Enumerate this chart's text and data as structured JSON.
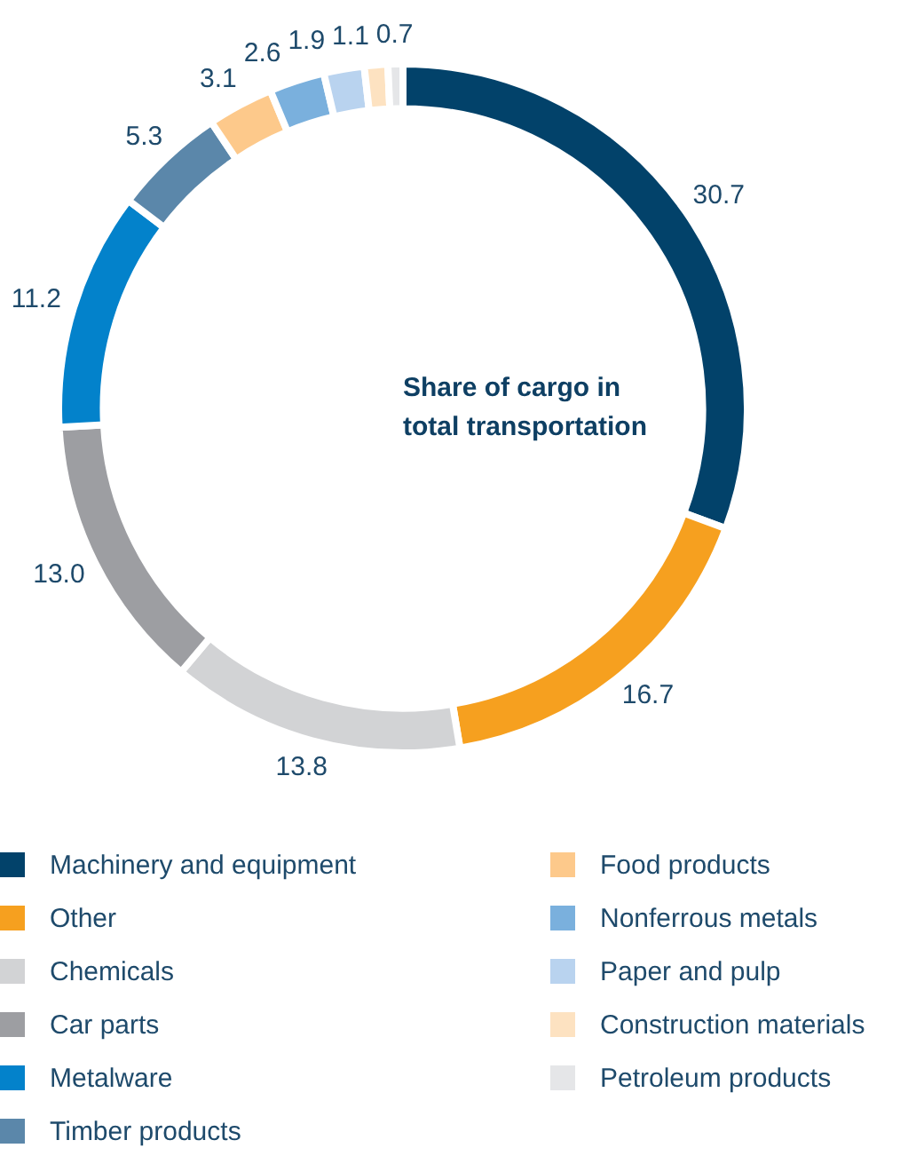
{
  "chart_data": {
    "type": "donut",
    "title": "Share of cargo in total transportation",
    "categories": [
      "Machinery and equipment",
      "Other",
      "Chemicals",
      "Car parts",
      "Metalware",
      "Timber products",
      "Food products",
      "Nonferrous metals",
      "Paper and pulp",
      "Construction materials",
      "Petroleum products"
    ],
    "values": [
      30.7,
      16.7,
      13.8,
      13.0,
      11.2,
      5.3,
      3.1,
      2.6,
      1.9,
      1.1,
      0.7
    ],
    "value_labels": [
      "30.7",
      "16.7",
      "13.8",
      "13.0",
      "11.2",
      "5.3",
      "3.1",
      "2.6",
      "1.9",
      "1.1",
      "0.7"
    ],
    "colors": [
      "#02426a",
      "#f6a01f",
      "#d2d3d5",
      "#9d9ea2",
      "#0382cb",
      "#5b87aa",
      "#fdc98b",
      "#7ab0dd",
      "#b9d3ef",
      "#fde2c1",
      "#e5e6e8"
    ],
    "legend": "bottom"
  }
}
